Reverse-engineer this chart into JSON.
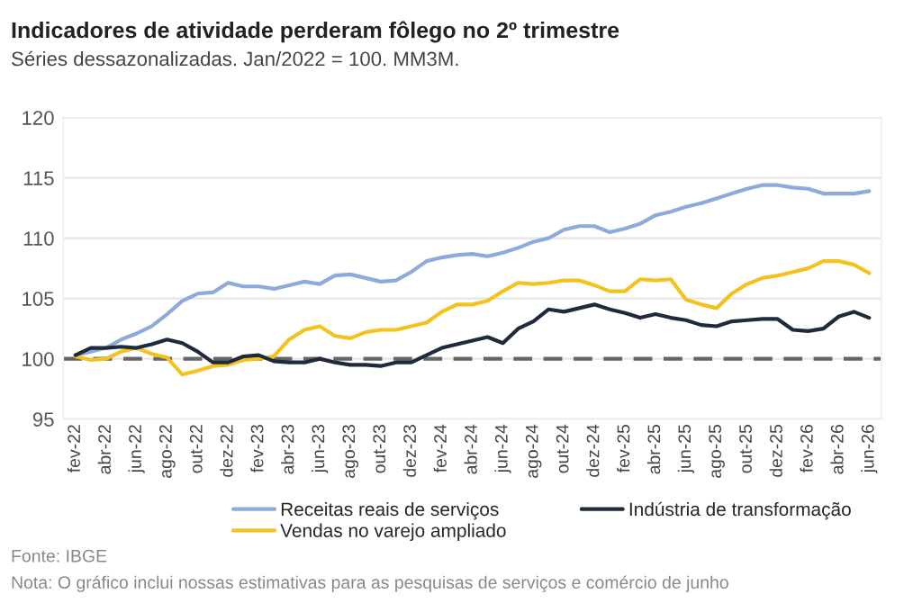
{
  "chart_data": {
    "type": "line",
    "title": "Indicadores de atividade perderam fôlego no 2º trimestre",
    "subtitle": "Séries dessazonalizadas. Jan/2022 = 100. MM3M.",
    "categories": [
      "fev-22",
      null,
      "abr-22",
      null,
      "jun-22",
      null,
      "ago-22",
      null,
      "out-22",
      null,
      "dez-22",
      null,
      "fev-23",
      null,
      "abr-23",
      null,
      "jun-23",
      null,
      "ago-23",
      null,
      "out-23",
      null,
      "dez-23",
      null,
      "fev-24",
      null,
      "abr-24",
      null,
      "jun-24",
      null,
      "ago-24",
      null,
      "out-24",
      null,
      "dez-24",
      null,
      "fev-25",
      null,
      "abr-25",
      null,
      "jun-25",
      null,
      "ago-25",
      null,
      "out-25",
      null,
      "dez-25",
      null,
      "fev-26",
      null,
      "abr-26",
      null,
      "jun-26"
    ],
    "series": [
      {
        "name": "Receitas reais de serviços",
        "color": "#8eaadb",
        "values": [
          100.3,
          100.6,
          100.9,
          101.6,
          102.1,
          102.7,
          103.7,
          104.8,
          105.4,
          105.5,
          106.3,
          106.0,
          106.0,
          105.8,
          106.1,
          106.4,
          106.2,
          106.9,
          107.0,
          106.7,
          106.4,
          106.5,
          107.2,
          108.1,
          108.4,
          108.6,
          108.7,
          108.5,
          108.8,
          109.2,
          109.7,
          110.0,
          110.7,
          111.0,
          111.0,
          110.5,
          110.8,
          111.2,
          111.9,
          112.2,
          112.6,
          112.9,
          113.3,
          113.7,
          114.1,
          114.4,
          114.4,
          114.2,
          114.1,
          113.7,
          113.7,
          113.7,
          113.9
        ]
      },
      {
        "name": "Vendas no varejo ampliado",
        "color": "#f4c21d",
        "values": [
          100.2,
          99.9,
          100.0,
          100.6,
          100.9,
          100.4,
          100.1,
          98.7,
          99.0,
          99.4,
          99.5,
          99.9,
          100.0,
          100.2,
          101.6,
          102.4,
          102.7,
          101.9,
          101.7,
          102.2,
          102.4,
          102.4,
          102.7,
          103.0,
          103.9,
          104.5,
          104.5,
          104.8,
          105.6,
          106.3,
          106.2,
          106.3,
          106.5,
          106.5,
          106.1,
          105.6,
          105.6,
          106.6,
          106.5,
          106.6,
          104.9,
          104.5,
          104.2,
          105.4,
          106.2,
          106.7,
          106.9,
          107.2,
          107.5,
          108.1,
          108.1,
          107.8,
          107.1
        ]
      },
      {
        "name": "Indústria de transformação",
        "color": "#1f2b3d",
        "values": [
          100.3,
          100.9,
          100.9,
          101.0,
          100.9,
          101.2,
          101.6,
          101.3,
          100.6,
          99.7,
          99.7,
          100.2,
          100.3,
          99.8,
          99.7,
          99.7,
          100.0,
          99.7,
          99.5,
          99.5,
          99.4,
          99.7,
          99.7,
          100.3,
          100.9,
          101.2,
          101.5,
          101.8,
          101.3,
          102.5,
          103.1,
          104.1,
          103.9,
          104.2,
          104.5,
          104.1,
          103.8,
          103.4,
          103.7,
          103.4,
          103.2,
          102.8,
          102.7,
          103.1,
          103.2,
          103.3,
          103.3,
          102.4,
          102.3,
          102.5,
          103.5,
          103.9,
          103.4
        ]
      }
    ],
    "ylim": [
      95,
      120
    ],
    "yticks": [
      95,
      100,
      105,
      110,
      115,
      120
    ],
    "grid": "y",
    "legend": "bottom",
    "marker": "none",
    "line_style": "solid",
    "ref_lines": [
      {
        "axis": "y",
        "value": 100,
        "label": null,
        "color": "#666666",
        "line_style": "dashed"
      }
    ],
    "annotations": [
      "Fonte: IBGE",
      "Nota: O gráfico inclui nossas estimativas para as pesquisas de serviços e comércio de junho"
    ]
  }
}
